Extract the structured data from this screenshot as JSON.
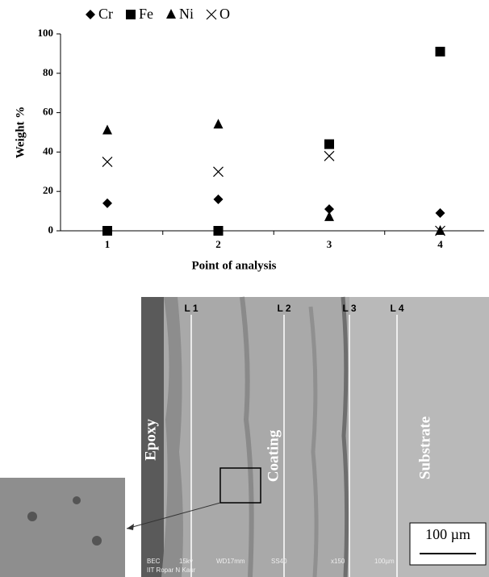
{
  "chart_data": {
    "type": "scatter",
    "x_label": "Point of analysis",
    "y_label": "Weight %",
    "categories": [
      "1",
      "2",
      "3",
      "4"
    ],
    "series": [
      {
        "name": "Cr",
        "color": "#000000",
        "marker": "diamond",
        "values": [
          14,
          16,
          11,
          9
        ]
      },
      {
        "name": "Fe",
        "color": "#000000",
        "marker": "square",
        "values": [
          0,
          0,
          44,
          91
        ]
      },
      {
        "name": "Ni",
        "color": "#000000",
        "marker": "triangle",
        "values": [
          51,
          54,
          7,
          0
        ]
      },
      {
        "name": "O",
        "color": "#000000",
        "marker": "cross",
        "values": [
          35,
          30,
          38,
          0
        ]
      }
    ],
    "ylim": [
      0,
      100
    ],
    "yticks": [
      0,
      20,
      40,
      60,
      80,
      100
    ],
    "grid": false,
    "legend": "top"
  },
  "micrograph": {
    "line_labels": [
      "L 1",
      "L 2",
      "L 3",
      "L 4"
    ],
    "region_labels": [
      "Epoxy",
      "Coating",
      "Substrate"
    ],
    "scale_bar": "100 µm",
    "footer": [
      "BEC",
      "15kv",
      "WD17mm",
      "SS40",
      "x150",
      "100µm"
    ],
    "operator": "IIT Ropar N Kaur"
  }
}
